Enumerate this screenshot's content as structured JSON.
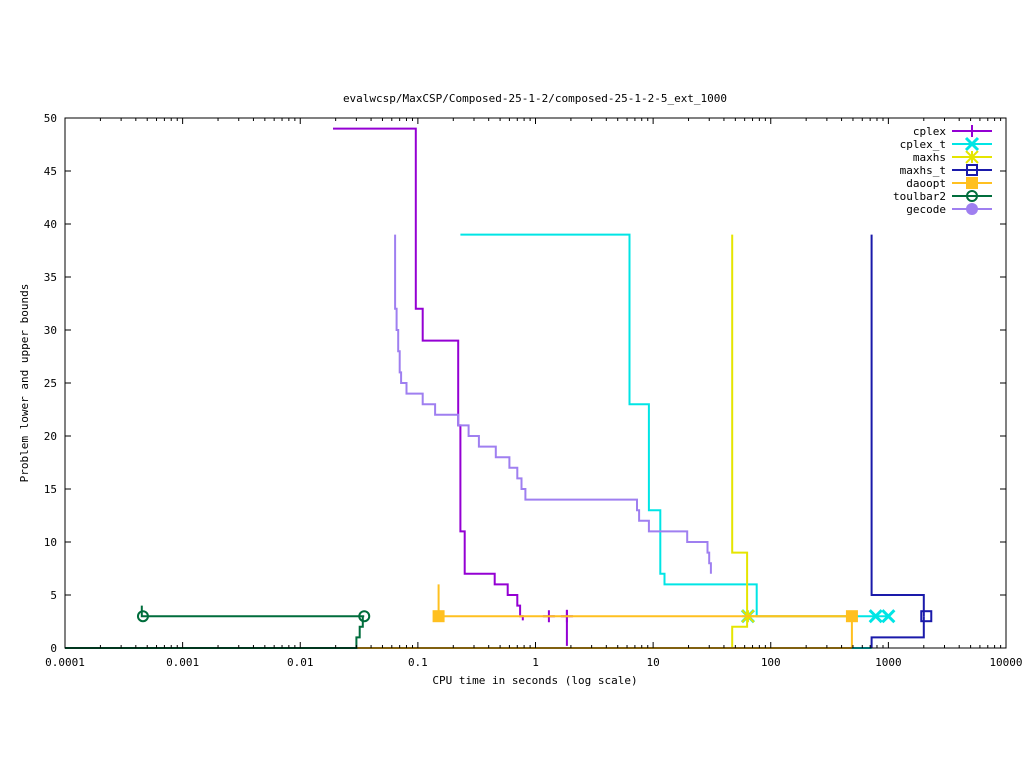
{
  "chart_data": {
    "type": "line",
    "title": "evalwcsp/MaxCSP/Composed-25-1-2/composed-25-1-2-5_ext_1000",
    "xlabel": "CPU time in seconds (log scale)",
    "ylabel": "Problem lower and upper bounds",
    "x_scale": "log",
    "xlim": [
      0.0001,
      10000
    ],
    "ylim": [
      0,
      50
    ],
    "x_ticks": [
      0.0001,
      0.001,
      0.01,
      0.1,
      1,
      10,
      100,
      1000,
      10000
    ],
    "x_tick_labels": [
      "0.0001",
      "0.001",
      "0.01",
      "0.1",
      "1",
      "10",
      "100",
      "1000",
      "10000"
    ],
    "y_ticks": [
      0,
      5,
      10,
      15,
      20,
      25,
      30,
      35,
      40,
      45,
      50
    ],
    "y_tick_labels": [
      "0",
      "5",
      "10",
      "15",
      "20",
      "25",
      "30",
      "35",
      "40",
      "45",
      "50"
    ],
    "grid": false,
    "legend_position": "top-right",
    "series": [
      {
        "name": "cplex",
        "color": "#9400d3",
        "marker": "plus",
        "upper": [
          [
            0.019,
            49
          ],
          [
            0.096,
            49
          ],
          [
            0.096,
            32
          ],
          [
            0.11,
            32
          ],
          [
            0.11,
            29
          ],
          [
            0.22,
            29
          ],
          [
            0.22,
            21
          ],
          [
            0.23,
            21
          ],
          [
            0.23,
            11
          ],
          [
            0.25,
            11
          ],
          [
            0.25,
            7
          ],
          [
            0.45,
            7
          ],
          [
            0.45,
            6
          ],
          [
            0.58,
            6
          ],
          [
            0.58,
            5
          ],
          [
            0.7,
            5
          ],
          [
            0.7,
            4
          ],
          [
            0.74,
            4
          ],
          [
            0.74,
            3
          ],
          [
            0.78,
            3
          ],
          [
            0.78,
            2.6
          ]
        ],
        "lower": [],
        "markers": [
          [
            1.3,
            3
          ],
          [
            1.85,
            3
          ]
        ],
        "extra_segments": [
          [
            [
              1.85,
              0.2
            ],
            [
              1.85,
              3.6
            ]
          ]
        ]
      },
      {
        "name": "cplex_t",
        "color": "#00e5e5",
        "marker": "x",
        "upper": [
          [
            0.23,
            39
          ],
          [
            6.3,
            39
          ],
          [
            6.3,
            23
          ],
          [
            9.2,
            23
          ],
          [
            9.2,
            13
          ],
          [
            11.5,
            13
          ],
          [
            11.5,
            7
          ],
          [
            12.5,
            7
          ],
          [
            12.5,
            6
          ],
          [
            76,
            6
          ],
          [
            76,
            3
          ],
          [
            1000,
            3
          ]
        ],
        "lower": [
          [
            0.0001,
            0
          ],
          [
            720,
            0
          ]
        ],
        "markers": [
          [
            64,
            3
          ],
          [
            780,
            3
          ],
          [
            1000,
            3
          ]
        ]
      },
      {
        "name": "maxhs",
        "color": "#e5e500",
        "marker": "star",
        "upper": [
          [
            47,
            39
          ],
          [
            47,
            9
          ],
          [
            63,
            9
          ],
          [
            63,
            3
          ],
          [
            500,
            3
          ]
        ],
        "lower": [
          [
            0.0001,
            0
          ],
          [
            47,
            0
          ],
          [
            47,
            2
          ],
          [
            63,
            2
          ],
          [
            63,
            3
          ]
        ],
        "markers": [
          [
            64,
            3
          ]
        ]
      },
      {
        "name": "maxhs_t",
        "color": "#1a1aaa",
        "marker": "square",
        "upper": [
          [
            720,
            39
          ],
          [
            720,
            5
          ],
          [
            2000,
            5
          ],
          [
            2000,
            3
          ]
        ],
        "lower": [
          [
            720,
            0
          ],
          [
            720,
            1
          ],
          [
            2000,
            1
          ],
          [
            2000,
            3
          ]
        ],
        "markers": [
          [
            2100,
            3
          ]
        ]
      },
      {
        "name": "daoopt",
        "color": "#ffc020",
        "marker": "filled-square",
        "upper": [
          [
            0.15,
            6
          ],
          [
            0.15,
            3
          ],
          [
            490,
            3
          ],
          [
            490,
            0
          ]
        ],
        "lower": [
          [
            0.0001,
            0
          ],
          [
            490,
            0
          ]
        ],
        "markers": [
          [
            0.15,
            3
          ],
          [
            490,
            3
          ]
        ]
      },
      {
        "name": "toulbar2",
        "color": "#006d3c",
        "marker": "open-circle",
        "upper": [
          [
            0.00045,
            4
          ],
          [
            0.00045,
            3
          ],
          [
            0.035,
            3
          ]
        ],
        "lower": [
          [
            0.0001,
            0
          ],
          [
            0.03,
            0
          ],
          [
            0.03,
            1
          ],
          [
            0.032,
            1
          ],
          [
            0.032,
            2
          ],
          [
            0.034,
            2
          ],
          [
            0.034,
            3
          ]
        ],
        "markers": [
          [
            0.00046,
            3
          ],
          [
            0.035,
            3
          ]
        ]
      },
      {
        "name": "gecode",
        "color": "#9f7ff0",
        "marker": "filled-circle",
        "upper": [
          [
            0.064,
            39
          ],
          [
            0.064,
            32
          ],
          [
            0.066,
            32
          ],
          [
            0.066,
            30
          ],
          [
            0.068,
            30
          ],
          [
            0.068,
            28
          ],
          [
            0.07,
            28
          ],
          [
            0.07,
            26
          ],
          [
            0.072,
            26
          ],
          [
            0.072,
            25
          ],
          [
            0.08,
            25
          ],
          [
            0.08,
            24
          ],
          [
            0.11,
            24
          ],
          [
            0.11,
            23
          ],
          [
            0.14,
            23
          ],
          [
            0.14,
            22
          ],
          [
            0.22,
            22
          ],
          [
            0.22,
            21
          ],
          [
            0.27,
            21
          ],
          [
            0.27,
            20
          ],
          [
            0.33,
            20
          ],
          [
            0.33,
            19
          ],
          [
            0.46,
            19
          ],
          [
            0.46,
            18
          ],
          [
            0.6,
            18
          ],
          [
            0.6,
            17
          ],
          [
            0.7,
            17
          ],
          [
            0.7,
            16
          ],
          [
            0.76,
            16
          ],
          [
            0.76,
            15
          ],
          [
            0.82,
            15
          ],
          [
            0.82,
            14
          ],
          [
            7.3,
            14
          ],
          [
            7.3,
            13
          ],
          [
            7.6,
            13
          ],
          [
            7.6,
            12
          ],
          [
            9.2,
            12
          ],
          [
            9.2,
            11
          ],
          [
            19.5,
            11
          ],
          [
            19.5,
            10
          ],
          [
            29,
            10
          ],
          [
            29,
            9
          ],
          [
            30,
            9
          ],
          [
            30,
            8
          ],
          [
            31,
            8
          ],
          [
            31,
            7
          ]
        ],
        "lower": [],
        "markers": []
      }
    ]
  }
}
